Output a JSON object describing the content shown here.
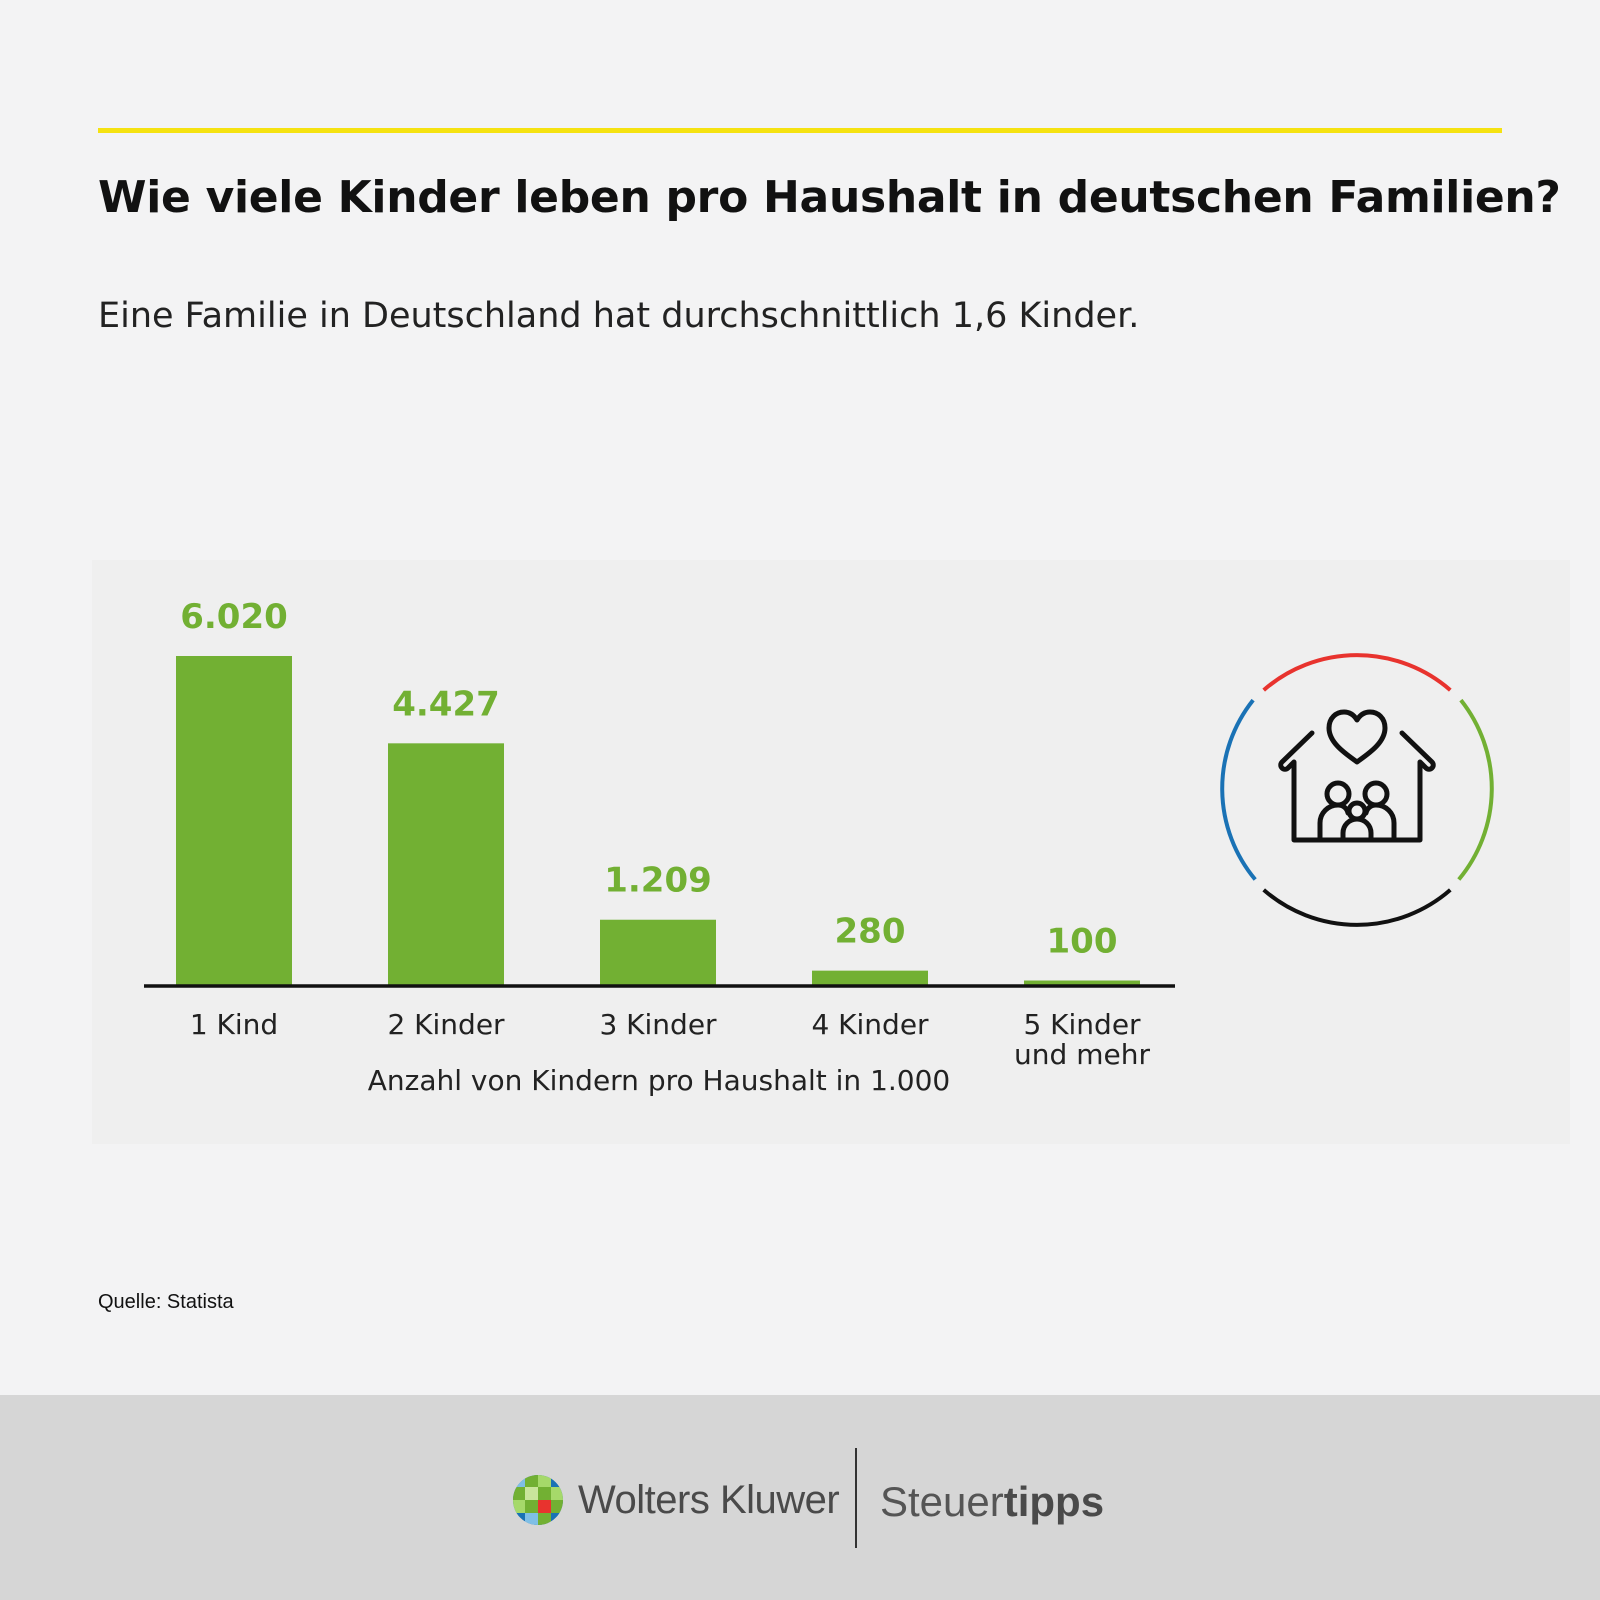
{
  "header": {
    "title": "Wie viele Kinder leben pro Haushalt in deutschen Familien?",
    "subtitle": "Eine Familie in Deutschland hat durchschnittlich 1,6 Kinder."
  },
  "chart_data": {
    "type": "bar",
    "categories": [
      "1 Kind",
      "2 Kinder",
      "3 Kinder",
      "4 Kinder",
      "5 Kinder und mehr"
    ],
    "category_lines": [
      [
        "1 Kind"
      ],
      [
        "2 Kinder"
      ],
      [
        "3 Kinder"
      ],
      [
        "4 Kinder"
      ],
      [
        "5 Kinder",
        "und mehr"
      ]
    ],
    "values": [
      6020,
      4427,
      1209,
      280,
      100
    ],
    "data_labels": [
      "6.020",
      "4.427",
      "1.209",
      "280",
      "100"
    ],
    "xlabel": "Anzahl von Kindern pro Haushalt in 1.000",
    "ylim": [
      0,
      6020
    ],
    "grid": false,
    "bar_color": "#72b033",
    "label_color": "#72b033",
    "axis_color": "#111111"
  },
  "icon": {
    "name": "family-house-icon",
    "ring_colors": [
      "#e8332e",
      "#72b033",
      "#111111",
      "#1a72b5"
    ]
  },
  "source": "Quelle: Statista",
  "footer": {
    "company": "Wolters Kluwer",
    "brand_regular": "Steuer",
    "brand_bold": "tipps"
  },
  "colors": {
    "accent_rule": "#f5e211",
    "footer_bg": "#d6d6d6",
    "page_bg": "#f3f3f4"
  }
}
